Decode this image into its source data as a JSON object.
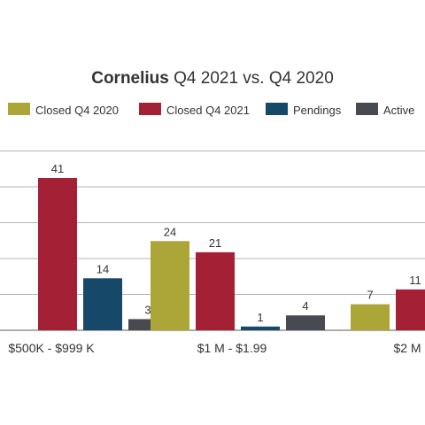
{
  "chart_data": {
    "type": "bar",
    "title_bold": "Cornelius",
    "title_rest": " Q4 2021 vs. Q4 2020",
    "categories": [
      "$500K - $999 K",
      "$1 M - $1.99",
      "$2 M"
    ],
    "series": [
      {
        "name": "Closed Q4 2020",
        "color": "#aca638",
        "values": [
          null,
          24,
          7
        ]
      },
      {
        "name": "Closed Q4 2021",
        "color": "#a32035",
        "values": [
          41,
          21,
          11
        ]
      },
      {
        "name": "Pendings",
        "color": "#16486a",
        "values": [
          14,
          1,
          null
        ]
      },
      {
        "name": "Active",
        "color": "#474b51",
        "values": [
          3,
          4,
          null
        ]
      }
    ],
    "ylim": [
      0,
      41
    ],
    "grid": true,
    "legend": "top"
  }
}
